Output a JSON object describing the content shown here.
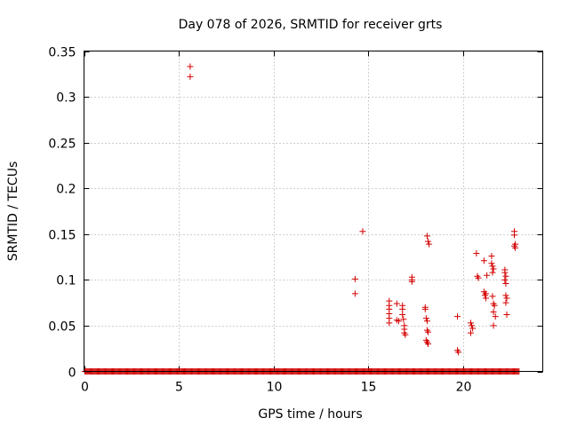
{
  "chart_data": {
    "type": "scatter",
    "title": "Day 078 of 2026, SRMTID for receiver grts",
    "xlabel": "GPS time / hours",
    "ylabel": "SRMTID / TECUs",
    "xlim": [
      0,
      24.2
    ],
    "ylim": [
      0,
      0.35
    ],
    "xticks": [
      0,
      5,
      10,
      15,
      20
    ],
    "yticks": [
      0,
      0.05,
      0.1,
      0.15,
      0.2,
      0.25,
      0.3,
      0.35
    ],
    "xtick_labels": [
      "0",
      "5",
      "10",
      "15",
      "20"
    ],
    "ytick_labels": [
      "0",
      "0.05",
      "0.1",
      "0.15",
      "0.2",
      "0.25",
      "0.3",
      "0.35"
    ],
    "grid": true,
    "marker": "+",
    "color": "#d40000",
    "zero_band": {
      "x_start": 0.05,
      "x_end": 22.95,
      "step": 0.05,
      "y": 0
    },
    "series": [
      {
        "name": "SRMTID",
        "points": [
          [
            5.6,
            0.333
          ],
          [
            5.6,
            0.322
          ],
          [
            14.3,
            0.101
          ],
          [
            14.3,
            0.085
          ],
          [
            14.7,
            0.153
          ],
          [
            16.1,
            0.077
          ],
          [
            16.1,
            0.072
          ],
          [
            16.1,
            0.068
          ],
          [
            16.1,
            0.063
          ],
          [
            16.1,
            0.058
          ],
          [
            16.1,
            0.053
          ],
          [
            16.5,
            0.074
          ],
          [
            16.5,
            0.056
          ],
          [
            16.6,
            0.055
          ],
          [
            16.8,
            0.072
          ],
          [
            16.8,
            0.068
          ],
          [
            16.8,
            0.062
          ],
          [
            16.85,
            0.057
          ],
          [
            16.9,
            0.05
          ],
          [
            16.9,
            0.046
          ],
          [
            16.9,
            0.042
          ],
          [
            16.95,
            0.04
          ],
          [
            17.3,
            0.103
          ],
          [
            17.3,
            0.1
          ],
          [
            17.3,
            0.098
          ],
          [
            18.0,
            0.07
          ],
          [
            18.0,
            0.068
          ],
          [
            18.05,
            0.058
          ],
          [
            18.1,
            0.055
          ],
          [
            18.1,
            0.045
          ],
          [
            18.15,
            0.043
          ],
          [
            18.05,
            0.034
          ],
          [
            18.1,
            0.032
          ],
          [
            18.15,
            0.03
          ],
          [
            18.1,
            0.148
          ],
          [
            18.15,
            0.142
          ],
          [
            18.2,
            0.139
          ],
          [
            19.7,
            0.06
          ],
          [
            19.7,
            0.023
          ],
          [
            19.75,
            0.021
          ],
          [
            20.4,
            0.053
          ],
          [
            20.45,
            0.05
          ],
          [
            20.5,
            0.047
          ],
          [
            20.4,
            0.042
          ],
          [
            20.7,
            0.129
          ],
          [
            20.75,
            0.104
          ],
          [
            20.8,
            0.102
          ],
          [
            21.1,
            0.121
          ],
          [
            21.1,
            0.087
          ],
          [
            21.15,
            0.083
          ],
          [
            21.2,
            0.085
          ],
          [
            21.2,
            0.08
          ],
          [
            21.25,
            0.105
          ],
          [
            21.5,
            0.126
          ],
          [
            21.5,
            0.118
          ],
          [
            21.55,
            0.115
          ],
          [
            21.6,
            0.112
          ],
          [
            21.55,
            0.108
          ],
          [
            21.55,
            0.082
          ],
          [
            21.6,
            0.074
          ],
          [
            21.65,
            0.072
          ],
          [
            21.6,
            0.065
          ],
          [
            21.7,
            0.06
          ],
          [
            21.6,
            0.05
          ],
          [
            22.2,
            0.111
          ],
          [
            22.2,
            0.108
          ],
          [
            22.25,
            0.104
          ],
          [
            22.2,
            0.1
          ],
          [
            22.25,
            0.096
          ],
          [
            22.25,
            0.083
          ],
          [
            22.3,
            0.08
          ],
          [
            22.25,
            0.075
          ],
          [
            22.3,
            0.062
          ],
          [
            22.7,
            0.153
          ],
          [
            22.7,
            0.149
          ],
          [
            22.75,
            0.139
          ],
          [
            22.7,
            0.137
          ],
          [
            22.75,
            0.135
          ]
        ]
      }
    ]
  }
}
